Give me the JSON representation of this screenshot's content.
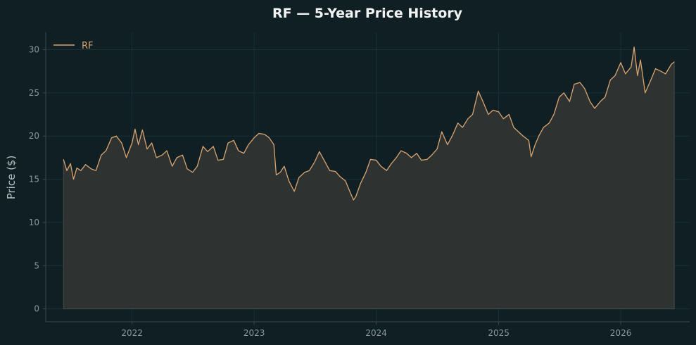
{
  "chart_data": {
    "type": "area",
    "title": "RF — 5-Year Price History",
    "xlabel": "",
    "ylabel": "Price ($)",
    "ylim": [
      -1.5,
      32.0
    ],
    "xlim": [
      "2021-04-18",
      "2026-07-26"
    ],
    "x_ticks": [
      "2022",
      "2023",
      "2024",
      "2025",
      "2026"
    ],
    "y_ticks": [
      0,
      5,
      10,
      15,
      20,
      25,
      30
    ],
    "grid": true,
    "legend": {
      "position": "top-left",
      "entries": [
        "RF"
      ]
    },
    "colors": {
      "background": "#0f1f24",
      "line": "#d9a46f",
      "fill": "#2e3231",
      "grid": "#183036",
      "axis": "#3c484c"
    },
    "series": [
      {
        "name": "RF",
        "points": [
          [
            "2021-06-10",
            17.3
          ],
          [
            "2021-06-20",
            16.0
          ],
          [
            "2021-07-01",
            16.8
          ],
          [
            "2021-07-10",
            15.0
          ],
          [
            "2021-07-20",
            16.3
          ],
          [
            "2021-08-01",
            16.0
          ],
          [
            "2021-08-15",
            16.7
          ],
          [
            "2021-09-01",
            16.2
          ],
          [
            "2021-09-15",
            16.0
          ],
          [
            "2021-10-01",
            17.8
          ],
          [
            "2021-10-15",
            18.3
          ],
          [
            "2021-11-01",
            19.8
          ],
          [
            "2021-11-15",
            20.0
          ],
          [
            "2021-12-01",
            19.2
          ],
          [
            "2021-12-15",
            17.5
          ],
          [
            "2022-01-01",
            19.2
          ],
          [
            "2022-01-10",
            20.8
          ],
          [
            "2022-01-20",
            19.0
          ],
          [
            "2022-02-01",
            20.7
          ],
          [
            "2022-02-15",
            18.5
          ],
          [
            "2022-03-01",
            19.2
          ],
          [
            "2022-03-15",
            17.5
          ],
          [
            "2022-04-01",
            17.8
          ],
          [
            "2022-04-15",
            18.3
          ],
          [
            "2022-05-01",
            16.5
          ],
          [
            "2022-05-15",
            17.5
          ],
          [
            "2022-06-01",
            17.8
          ],
          [
            "2022-06-15",
            16.2
          ],
          [
            "2022-07-01",
            15.8
          ],
          [
            "2022-07-15",
            16.5
          ],
          [
            "2022-08-01",
            18.8
          ],
          [
            "2022-08-15",
            18.2
          ],
          [
            "2022-09-01",
            18.8
          ],
          [
            "2022-09-15",
            17.2
          ],
          [
            "2022-10-01",
            17.3
          ],
          [
            "2022-10-15",
            19.2
          ],
          [
            "2022-11-01",
            19.5
          ],
          [
            "2022-11-15",
            18.3
          ],
          [
            "2022-12-01",
            18.0
          ],
          [
            "2022-12-15",
            19.0
          ],
          [
            "2023-01-01",
            19.8
          ],
          [
            "2023-01-15",
            20.3
          ],
          [
            "2023-02-01",
            20.2
          ],
          [
            "2023-02-15",
            19.8
          ],
          [
            "2023-03-01",
            19.0
          ],
          [
            "2023-03-08",
            15.5
          ],
          [
            "2023-03-20",
            15.8
          ],
          [
            "2023-04-01",
            16.5
          ],
          [
            "2023-04-15",
            14.8
          ],
          [
            "2023-05-01",
            13.6
          ],
          [
            "2023-05-15",
            15.2
          ],
          [
            "2023-06-01",
            15.8
          ],
          [
            "2023-06-15",
            16.0
          ],
          [
            "2023-07-01",
            17.0
          ],
          [
            "2023-07-15",
            18.2
          ],
          [
            "2023-08-01",
            17.0
          ],
          [
            "2023-08-15",
            16.0
          ],
          [
            "2023-09-01",
            15.9
          ],
          [
            "2023-09-15",
            15.3
          ],
          [
            "2023-10-01",
            14.8
          ],
          [
            "2023-10-15",
            13.5
          ],
          [
            "2023-10-25",
            12.6
          ],
          [
            "2023-11-01",
            13.0
          ],
          [
            "2023-11-15",
            14.5
          ],
          [
            "2023-12-01",
            15.8
          ],
          [
            "2023-12-15",
            17.3
          ],
          [
            "2024-01-01",
            17.2
          ],
          [
            "2024-01-15",
            16.5
          ],
          [
            "2024-02-01",
            16.0
          ],
          [
            "2024-02-15",
            16.8
          ],
          [
            "2024-03-01",
            17.5
          ],
          [
            "2024-03-15",
            18.3
          ],
          [
            "2024-04-01",
            18.0
          ],
          [
            "2024-04-15",
            17.5
          ],
          [
            "2024-05-01",
            18.0
          ],
          [
            "2024-05-15",
            17.2
          ],
          [
            "2024-06-01",
            17.3
          ],
          [
            "2024-06-15",
            17.8
          ],
          [
            "2024-07-01",
            18.5
          ],
          [
            "2024-07-15",
            20.5
          ],
          [
            "2024-08-01",
            19.0
          ],
          [
            "2024-08-15",
            20.0
          ],
          [
            "2024-09-01",
            21.5
          ],
          [
            "2024-09-15",
            21.0
          ],
          [
            "2024-10-01",
            22.0
          ],
          [
            "2024-10-15",
            22.5
          ],
          [
            "2024-11-01",
            25.2
          ],
          [
            "2024-11-15",
            24.0
          ],
          [
            "2024-12-01",
            22.5
          ],
          [
            "2024-12-15",
            23.0
          ],
          [
            "2025-01-01",
            22.8
          ],
          [
            "2025-01-15",
            22.0
          ],
          [
            "2025-02-01",
            22.5
          ],
          [
            "2025-02-15",
            21.0
          ],
          [
            "2025-03-01",
            20.5
          ],
          [
            "2025-03-15",
            20.0
          ],
          [
            "2025-04-01",
            19.5
          ],
          [
            "2025-04-08",
            17.6
          ],
          [
            "2025-04-20",
            19.0
          ],
          [
            "2025-05-01",
            20.0
          ],
          [
            "2025-05-15",
            21.0
          ],
          [
            "2025-06-01",
            21.5
          ],
          [
            "2025-06-15",
            22.5
          ],
          [
            "2025-07-01",
            24.5
          ],
          [
            "2025-07-15",
            25.0
          ],
          [
            "2025-08-01",
            24.0
          ],
          [
            "2025-08-15",
            26.0
          ],
          [
            "2025-09-01",
            26.2
          ],
          [
            "2025-09-15",
            25.5
          ],
          [
            "2025-10-01",
            24.0
          ],
          [
            "2025-10-15",
            23.2
          ],
          [
            "2025-11-01",
            24.0
          ],
          [
            "2025-11-15",
            24.5
          ],
          [
            "2025-12-01",
            26.5
          ],
          [
            "2025-12-15",
            27.0
          ],
          [
            "2026-01-01",
            28.5
          ],
          [
            "2026-01-15",
            27.2
          ],
          [
            "2026-02-01",
            28.0
          ],
          [
            "2026-02-10",
            30.3
          ],
          [
            "2026-02-20",
            27.0
          ],
          [
            "2026-03-01",
            28.8
          ],
          [
            "2026-03-15",
            25.0
          ],
          [
            "2026-04-01",
            26.5
          ],
          [
            "2026-04-15",
            27.8
          ],
          [
            "2026-05-01",
            27.5
          ],
          [
            "2026-05-15",
            27.2
          ],
          [
            "2026-06-01",
            28.3
          ],
          [
            "2026-06-10",
            28.6
          ]
        ]
      }
    ]
  }
}
